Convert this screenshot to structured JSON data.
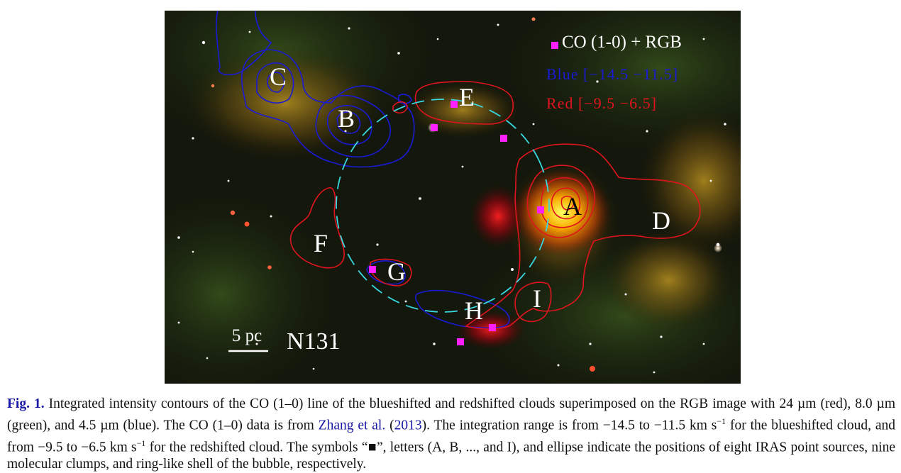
{
  "figure": {
    "clump_labels": [
      "A",
      "B",
      "C",
      "D",
      "E",
      "F",
      "G",
      "H",
      "I"
    ],
    "legend": {
      "marker_text": "CO (1-0) + RGB",
      "blue_text": "Blue [−14.5 −11.5]",
      "red_text": "Red [−9.5 −6.5]"
    },
    "scalebar_label": "5 pc",
    "object_name": "N131",
    "colors": {
      "blue_contour": "#1a1ad6",
      "red_contour": "#e0141e",
      "ellipse": "#38d8e0",
      "marker": "#ff20ff",
      "text": "#ffffff"
    }
  },
  "caption": {
    "label": "Fig. 1.",
    "part1": "Integrated intensity contours of the CO (1–0) line of the blueshifted and redshifted clouds superimposed on the RGB image with 24 µm (red), 8.0 µm (green), and 4.5 µm (blue). The CO (1–0) data is from ",
    "ref_authors": "Zhang et al.",
    "ref_open": " (",
    "ref_year": "2013",
    "part2": "). The integration range is from −14.5 to −11.5 km s",
    "exp1": "−1",
    "part3": " for the blueshifted cloud, and from −9.5 to −6.5 km s",
    "exp2": "−1",
    "part4": " for the redshifted cloud. The symbols “■”, letters (A, B, ..., and I), and ellipse indicate the positions of eight IRAS point sources, nine molecular clumps, and ring-like shell of the bubble, respectively."
  }
}
